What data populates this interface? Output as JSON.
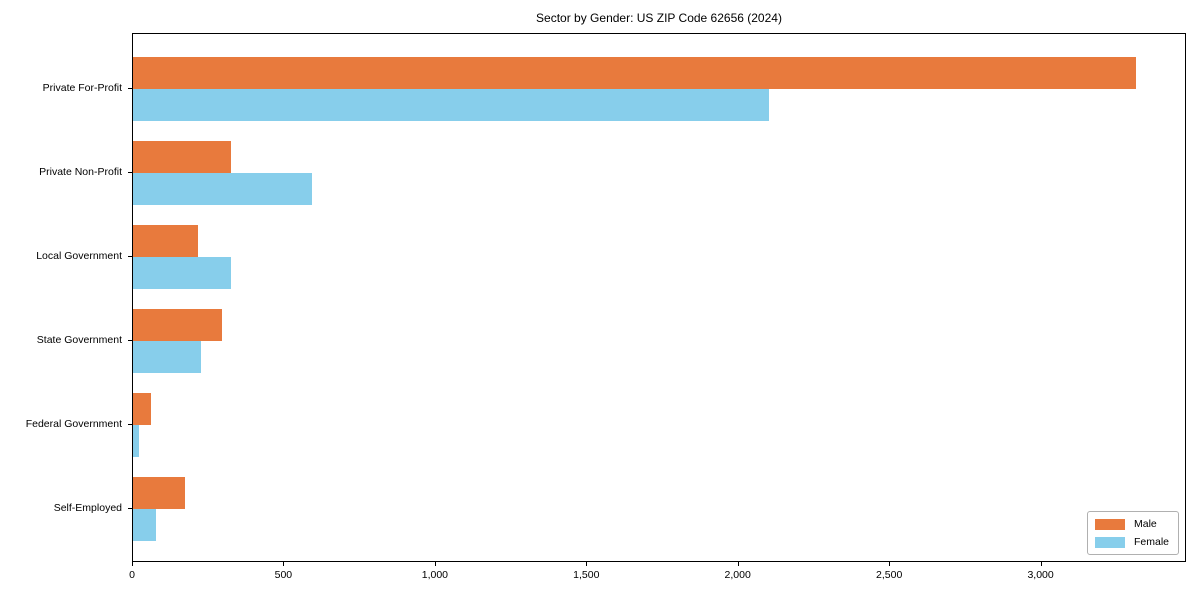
{
  "chart_data": {
    "type": "bar",
    "orientation": "horizontal",
    "title": "Sector by Gender: US ZIP Code 62656 (2024)",
    "categories": [
      "Private For-Profit",
      "Private Non-Profit",
      "Local Government",
      "State Government",
      "Federal Government",
      "Self-Employed"
    ],
    "series": [
      {
        "name": "Male",
        "color": "#e87a3d",
        "values": [
          3310,
          325,
          215,
          295,
          60,
          170
        ]
      },
      {
        "name": "Female",
        "color": "#87ceeb",
        "values": [
          2100,
          590,
          325,
          225,
          18,
          75
        ]
      }
    ],
    "xlabel": "",
    "ylabel": "",
    "xlim": [
      0,
      3480
    ],
    "x_ticks": [
      0,
      500,
      1000,
      1500,
      2000,
      2500,
      3000
    ],
    "x_tick_labels": [
      "0",
      "500",
      "1,000",
      "1,500",
      "2,000",
      "2,500",
      "3,000"
    ],
    "legend_position": "lower right",
    "grid": false,
    "colors": {
      "male": "#e87a3d",
      "female": "#87ceeb",
      "spine": "#000000",
      "legend_border": "#b0b0b0",
      "background": "#ffffff"
    }
  }
}
